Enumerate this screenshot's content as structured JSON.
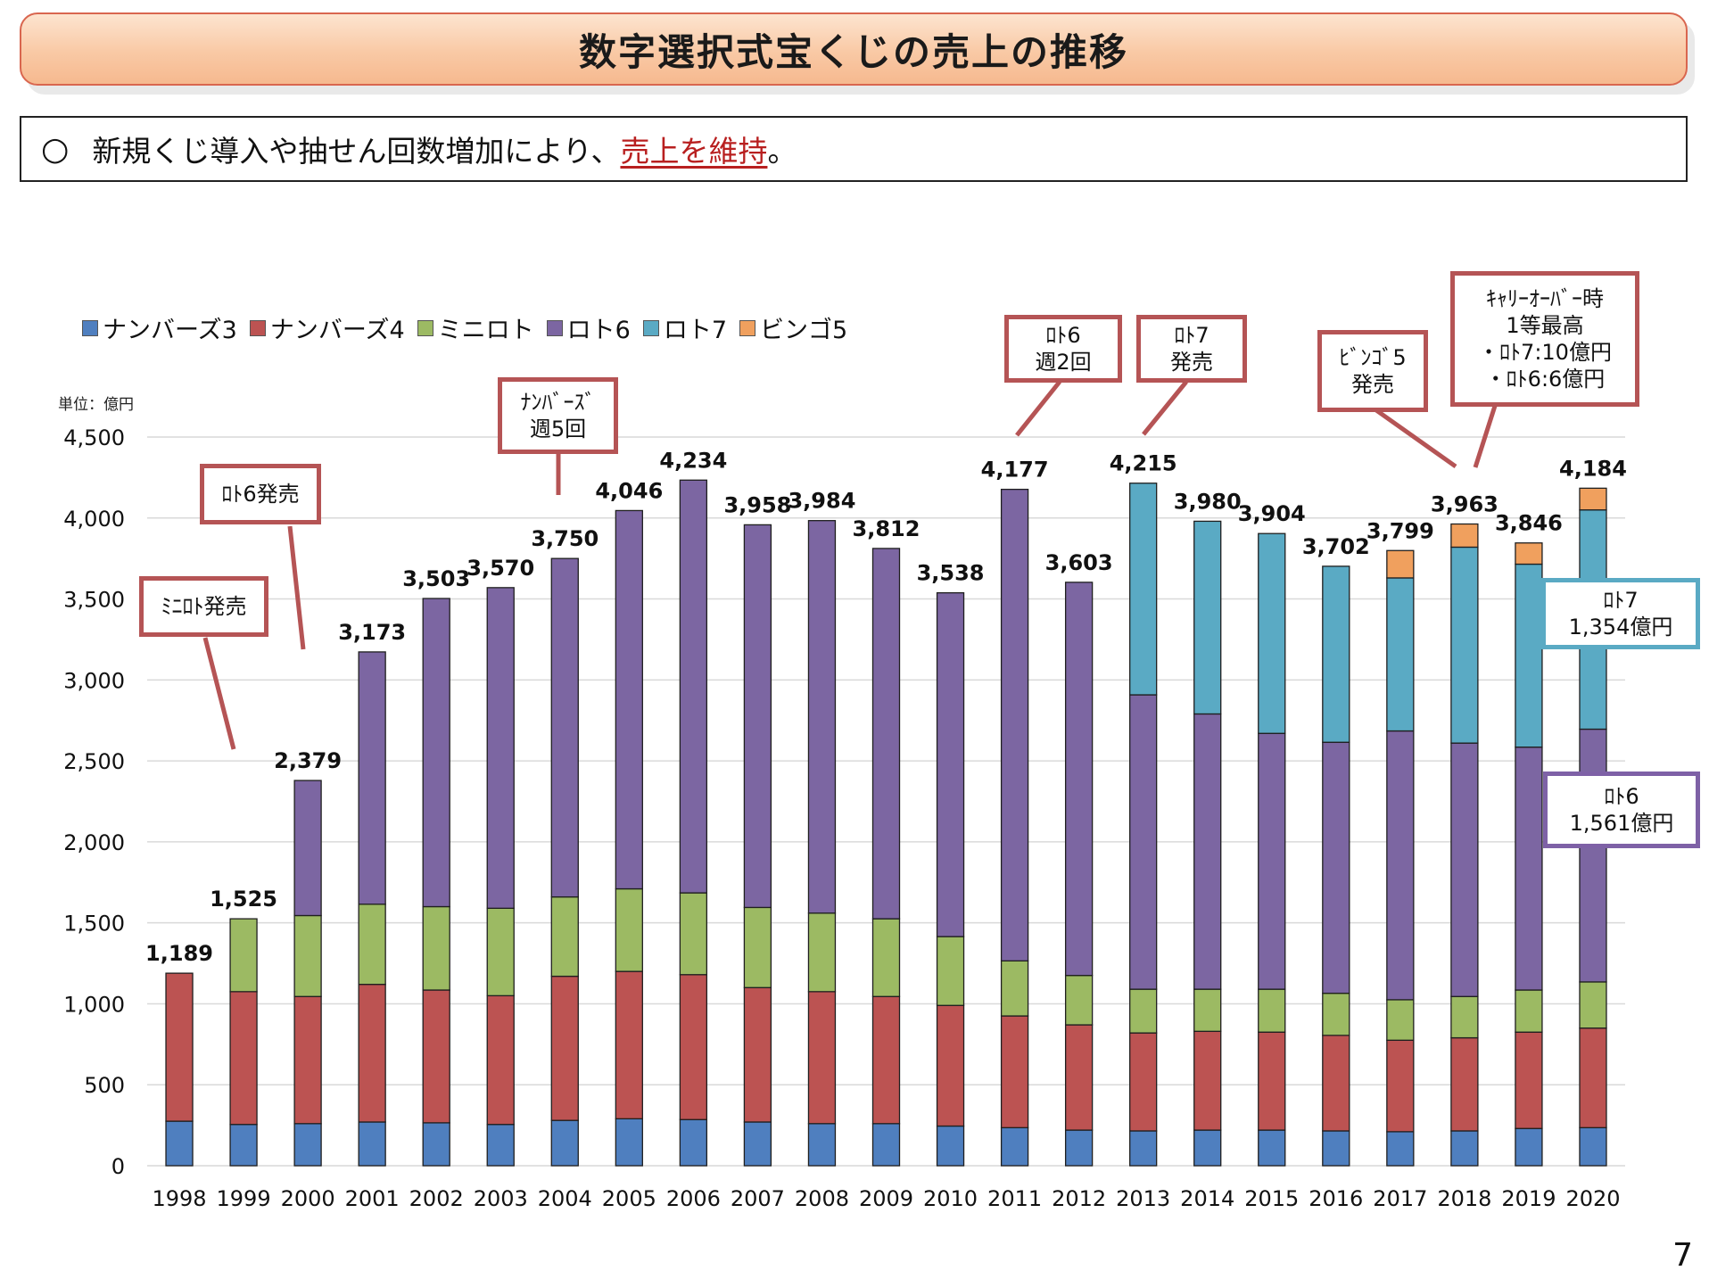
{
  "title": "数字選択式宝くじの売上の推移",
  "summary": {
    "bullet": "○",
    "text_before": "新規くじ導入や抽せん回数増加により、",
    "highlight": "売上を維持",
    "text_after": "。"
  },
  "page_number": "7",
  "colors": {
    "numbers3": "#4f7fbf",
    "numbers4": "#bc5352",
    "miniloto": "#9cba63",
    "loto6": "#7c66a2",
    "loto7": "#5aaac4",
    "bingo5": "#f0a05e"
  },
  "callouts": {
    "miniloto_launch": "ﾐﾆﾛﾄ発売",
    "loto6_launch": "ﾛﾄ6発売",
    "numbers_5x": [
      "ﾅﾝﾊﾞｰｽﾞ",
      "週5回"
    ],
    "loto6_2x": [
      "ﾛﾄ6",
      "週2回"
    ],
    "loto7_launch": [
      "ﾛﾄ7",
      "発売"
    ],
    "bingo5_launch": [
      "ﾋﾞﾝｺﾞ5",
      "発売"
    ],
    "carryover": [
      "ｷｬﾘｰｵｰﾊﾞｰ時",
      "1等最高",
      "・ﾛﾄ7:10億円",
      "・ﾛﾄ6:6億円"
    ],
    "loto7_2020": [
      "ﾛﾄ7",
      "1,354億円"
    ],
    "loto6_2020": [
      "ﾛﾄ6",
      "1,561億円"
    ]
  },
  "chart_data": {
    "type": "bar",
    "stacked": true,
    "unit_label": "単位：億円",
    "ylim": [
      0,
      4500
    ],
    "yticks": [
      0,
      500,
      1000,
      1500,
      2000,
      2500,
      3000,
      3500,
      4000,
      4500
    ],
    "grid": true,
    "legend_position": "top-left",
    "categories": [
      "1998",
      "1999",
      "2000",
      "2001",
      "2002",
      "2003",
      "2004",
      "2005",
      "2006",
      "2007",
      "2008",
      "2009",
      "2010",
      "2011",
      "2012",
      "2013",
      "2014",
      "2015",
      "2016",
      "2017",
      "2018",
      "2019",
      "2020"
    ],
    "totals": [
      1189,
      1525,
      2379,
      3173,
      3503,
      3570,
      3750,
      4046,
      4234,
      3958,
      3984,
      3812,
      3538,
      4177,
      3603,
      4215,
      3980,
      3904,
      3702,
      3799,
      3963,
      3846,
      4184
    ],
    "series": [
      {
        "name": "ナンバーズ3",
        "color_key": "numbers3",
        "values": [
          275,
          255,
          260,
          270,
          265,
          255,
          280,
          290,
          285,
          270,
          260,
          260,
          245,
          235,
          220,
          215,
          220,
          220,
          215,
          210,
          215,
          230,
          235
        ]
      },
      {
        "name": "ナンバーズ4",
        "color_key": "numbers4",
        "values": [
          914,
          820,
          785,
          850,
          820,
          795,
          890,
          910,
          895,
          830,
          815,
          785,
          745,
          690,
          650,
          605,
          610,
          605,
          590,
          565,
          575,
          595,
          615
        ]
      },
      {
        "name": "ミニロト",
        "color_key": "miniloto",
        "values": [
          0,
          450,
          500,
          495,
          515,
          540,
          490,
          510,
          505,
          495,
          485,
          480,
          425,
          340,
          305,
          270,
          260,
          265,
          260,
          250,
          255,
          260,
          285
        ]
      },
      {
        "name": "ロト6",
        "color_key": "loto6",
        "values": [
          0,
          0,
          834,
          1558,
          1903,
          1980,
          2090,
          2336,
          2549,
          2363,
          2424,
          2287,
          2123,
          2912,
          2428,
          1818,
          1700,
          1580,
          1550,
          1660,
          1565,
          1500,
          1561
        ]
      },
      {
        "name": "ロト7",
        "color_key": "loto7",
        "values": [
          0,
          0,
          0,
          0,
          0,
          0,
          0,
          0,
          0,
          0,
          0,
          0,
          0,
          0,
          0,
          1307,
          1190,
          1234,
          1087,
          945,
          1210,
          1130,
          1354
        ]
      },
      {
        "name": "ビンゴ5",
        "color_key": "bingo5",
        "values": [
          0,
          0,
          0,
          0,
          0,
          0,
          0,
          0,
          0,
          0,
          0,
          0,
          0,
          0,
          0,
          0,
          0,
          0,
          0,
          169,
          143,
          131,
          134
        ]
      }
    ]
  }
}
